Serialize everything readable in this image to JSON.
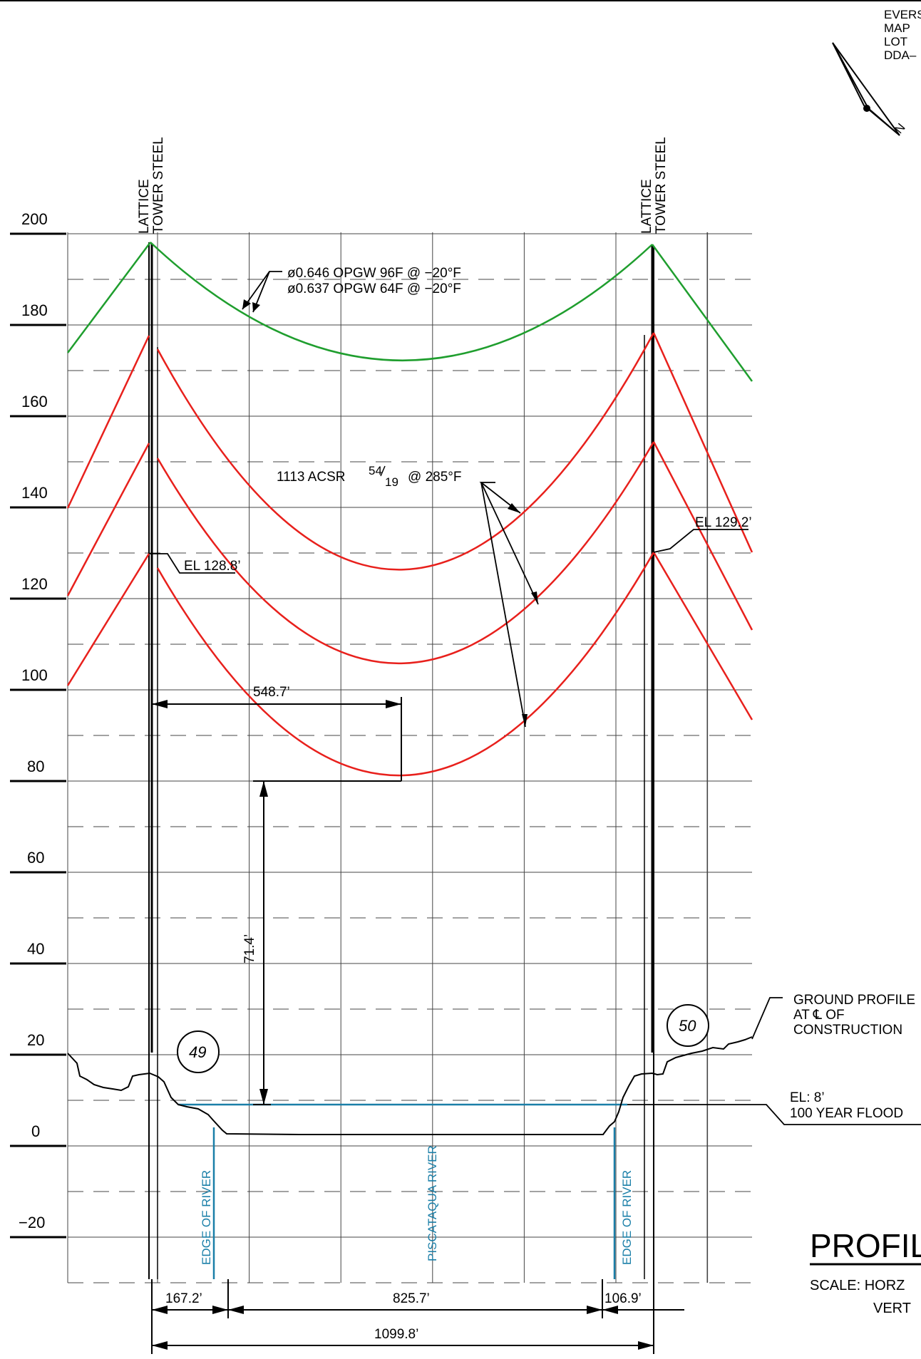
{
  "header_text": [
    "EVERS",
    "MAP",
    "LOT",
    "DDA–"
  ],
  "north_symbol": {
    "icon": "north-arrow-icon",
    "letter": "N"
  },
  "towers": [
    {
      "label_line1": "LATTICE",
      "label_line2": "TOWER STEEL",
      "number": "49"
    },
    {
      "label_line1": "LATTICE",
      "label_line2": "TOWER STEEL",
      "number": "50"
    }
  ],
  "y_axis": {
    "ticks": [
      "200",
      "180",
      "160",
      "140",
      "120",
      "100",
      "80",
      "60",
      "40",
      "20",
      "0",
      "−20"
    ]
  },
  "annotations": {
    "opgw_1": "ø0.646  OPGW  96F  @  −20°F",
    "opgw_2": "ø0.637  OPGW  64F  @  −20°F",
    "acsr_main": "1113  ACSR",
    "acsr_sup": "54",
    "acsr_sub": "19",
    "acsr_temp": "@  285°F",
    "el_left": "EL  128.8’",
    "el_right": "EL  129.2’",
    "dim_548": "548.7’",
    "dim_71": "71.4’",
    "ground_1": "GROUND  PROFILE",
    "ground_2": "AT  ℄  OF",
    "ground_3": "CONSTRUCTION",
    "flood_1": "EL:  8’",
    "flood_2": "100  YEAR  FLOOD",
    "edge_river_left": "EDGE  OF  RIVER",
    "river_name": "PISCATAQUA  RIVER",
    "edge_river_right": "EDGE  OF  RIVER",
    "dim_167": "167.2’",
    "dim_825": "825.7’",
    "dim_106": "106.9’",
    "dim_1099": "1099.8’"
  },
  "title_block": {
    "title": "PROFIL",
    "scale_1": "SCALE:  HORZ",
    "scale_2": "VERT"
  },
  "colors": {
    "shield_wire": "#1f9e2e",
    "conductor": "#e8201c",
    "water": "#1a7fa8",
    "ink": "#000000",
    "grid": "#444444"
  }
}
